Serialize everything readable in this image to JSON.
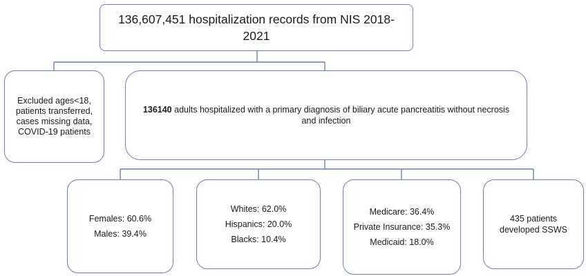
{
  "top": {
    "line1": "136,607,451 hospitalization records from NIS 2018-",
    "line2": "2021"
  },
  "excluded": {
    "lines": [
      "Excluded ages<18,",
      "patients transferred,",
      "cases missing data,",
      "COVID-19 patients"
    ]
  },
  "adults": {
    "count": "136140",
    "line1_rest": " adults hospitalized with a primary diagnosis of biliary acute pancreatitis without necrosis",
    "line2": "and infection"
  },
  "sex": {
    "females": "Females: 60.6%",
    "males": "Males: 39.4%"
  },
  "race": {
    "whites": "Whites: 62.0%",
    "hispanics": "Hispanics: 20.0%",
    "blacks": "Blacks: 10.4%"
  },
  "insurance": {
    "medicare": "Medicare: 36.4%",
    "private": "Private Insurance: 35.3%",
    "medicaid": "Medicaid: 18.0%"
  },
  "ssws": {
    "line1": "435 patients",
    "line2": "developed SSWS"
  },
  "colors": {
    "box_border": "#6d7fb0",
    "connector": "#6d7fb0"
  }
}
